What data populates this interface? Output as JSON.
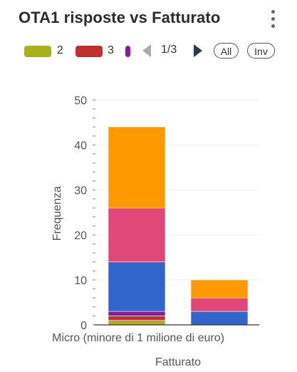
{
  "header": {
    "title": "OTA1 risposte vs Fatturato",
    "menu_icon": "vertical-dots-icon"
  },
  "legend": {
    "items": [
      {
        "label": "2",
        "color": "#a8b11a"
      },
      {
        "label": "3",
        "color": "#c0302f"
      },
      {
        "label": "",
        "color": "#8a1a9b"
      }
    ],
    "pager_text": "1/3",
    "all_label": "All",
    "inv_label": "Inv",
    "prev_icon": "triangle-left-icon",
    "next_icon": "triangle-right-icon"
  },
  "chart_data": {
    "type": "bar",
    "stacked": true,
    "categories": [
      "Micro (minore di 1 milione di euro)",
      ""
    ],
    "xlabel": "Fatturato",
    "ylabel": "Frequenza",
    "ylim": [
      0,
      50
    ],
    "yticks": [
      0,
      10,
      20,
      30,
      40,
      50
    ],
    "grid": true,
    "series": [
      {
        "name": "2",
        "color": "#a8b11a",
        "values": [
          1,
          0
        ]
      },
      {
        "name": "3",
        "color": "#c0302f",
        "values": [
          1,
          0
        ]
      },
      {
        "color": "#8a1a9b",
        "values": [
          1,
          0
        ]
      },
      {
        "color": "#3366cc",
        "values": [
          11,
          3
        ]
      },
      {
        "color": "#e0487a",
        "values": [
          12,
          3
        ]
      },
      {
        "color": "#ff9900",
        "values": [
          18,
          4
        ]
      }
    ]
  }
}
